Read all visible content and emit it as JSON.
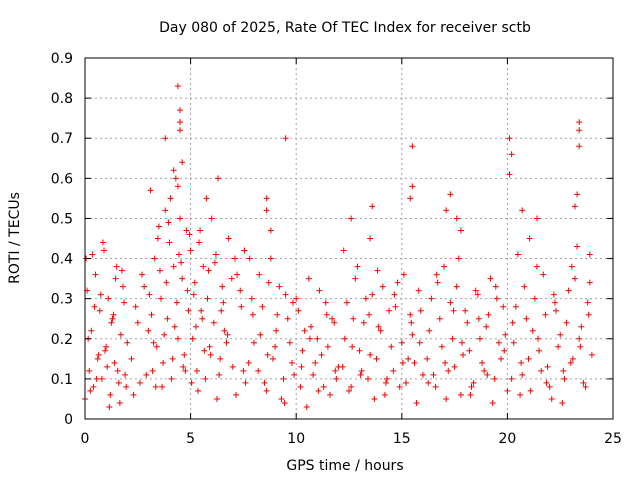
{
  "chart_data": {
    "type": "scatter",
    "title": "Day 080 of 2025, Rate Of TEC Index for receiver sctb",
    "xlabel": "GPS time / hours",
    "ylabel": "ROTI / TECUs",
    "xlim": [
      0,
      25
    ],
    "ylim": [
      0,
      0.9
    ],
    "x_ticks": [
      "0",
      "5",
      "10",
      "15",
      "20",
      "25"
    ],
    "y_ticks": [
      "0",
      "0.1",
      "0.2",
      "0.3",
      "0.4",
      "0.5",
      "0.6",
      "0.7",
      "0.8",
      "0.9"
    ],
    "grid": true,
    "marker": "+",
    "colors": {
      "points": "#ff0000",
      "grid": "#a0a0a0",
      "axis": "#000000"
    },
    "series": [
      {
        "x": [
          0.0,
          0.1,
          0.2,
          0.3,
          0.4,
          0.5,
          0.6,
          0.7,
          0.8,
          0.9,
          1.0,
          1.1,
          1.2,
          1.3,
          1.4,
          1.5,
          1.6,
          1.7,
          1.8,
          1.9,
          2.0,
          0.05,
          0.25,
          0.45,
          0.65,
          0.85,
          1.05,
          1.25,
          1.45,
          1.65,
          1.85,
          0.15,
          0.35,
          0.55,
          0.75,
          0.95,
          1.15,
          1.35,
          1.55,
          1.75,
          1.95,
          2.2,
          2.4,
          2.6,
          2.8,
          3.0,
          3.1,
          3.2,
          3.3,
          3.4,
          3.5,
          3.6,
          3.7,
          3.8,
          3.9,
          4.0,
          4.1,
          4.2,
          4.3,
          4.4,
          4.5,
          4.6,
          4.7,
          4.8,
          4.9,
          5.0,
          2.3,
          2.5,
          2.7,
          2.9,
          3.05,
          3.25,
          3.45,
          3.65,
          3.85,
          4.05,
          4.25,
          4.45,
          4.65,
          4.85,
          3.15,
          3.35,
          3.55,
          3.75,
          3.95,
          4.15,
          4.35,
          4.55,
          4.75,
          4.95,
          4.4,
          4.5,
          4.5,
          4.5,
          4.6,
          4.4,
          3.8,
          4.2,
          5.1,
          5.2,
          5.3,
          5.4,
          5.5,
          5.6,
          5.7,
          5.8,
          5.9,
          6.0,
          6.1,
          6.2,
          6.3,
          6.4,
          6.5,
          6.6,
          6.8,
          7.0,
          7.2,
          7.4,
          7.6,
          7.8,
          8.0,
          5.15,
          5.35,
          5.55,
          5.75,
          5.95,
          6.15,
          6.35,
          6.55,
          6.75,
          6.95,
          7.15,
          7.35,
          7.55,
          7.75,
          7.95,
          5.05,
          5.25,
          5.45,
          5.65,
          5.85,
          6.25,
          6.45,
          6.7,
          7.1,
          7.5,
          7.9,
          8.2,
          8.4,
          8.6,
          8.8,
          9.0,
          9.2,
          9.4,
          9.6,
          9.8,
          10.0,
          10.2,
          10.4,
          10.6,
          10.8,
          11.0,
          11.2,
          11.4,
          11.6,
          11.8,
          12.0,
          8.3,
          8.5,
          8.7,
          8.9,
          9.1,
          9.3,
          9.5,
          9.7,
          9.9,
          10.1,
          10.3,
          10.5,
          10.7,
          10.9,
          11.1,
          11.3,
          11.5,
          11.7,
          11.9,
          8.25,
          8.65,
          9.05,
          9.45,
          9.85,
          10.25,
          10.65,
          11.05,
          11.45,
          11.85,
          8.6,
          8.6,
          9.5,
          8.8,
          12.2,
          12.4,
          12.6,
          12.8,
          13.0,
          13.2,
          13.4,
          13.6,
          13.8,
          14.0,
          14.2,
          14.4,
          14.6,
          14.8,
          15.0,
          15.2,
          15.4,
          15.6,
          15.8,
          16.0,
          12.3,
          12.5,
          12.7,
          12.9,
          13.1,
          13.3,
          13.5,
          13.7,
          13.9,
          14.1,
          14.3,
          14.5,
          14.7,
          14.9,
          15.1,
          15.3,
          15.5,
          15.7,
          15.9,
          12.25,
          12.65,
          13.05,
          13.45,
          13.85,
          14.25,
          14.65,
          15.05,
          15.45,
          15.85,
          12.6,
          13.6,
          13.5,
          15.5,
          15.5,
          15.4,
          16.2,
          16.4,
          16.6,
          16.8,
          17.0,
          17.2,
          17.4,
          17.6,
          17.8,
          18.0,
          18.2,
          18.4,
          18.6,
          18.8,
          19.0,
          19.2,
          19.4,
          19.6,
          19.8,
          20.0,
          16.3,
          16.5,
          16.7,
          16.9,
          17.1,
          17.3,
          17.5,
          17.7,
          17.9,
          18.1,
          18.3,
          18.5,
          18.7,
          18.9,
          19.1,
          19.3,
          19.5,
          19.7,
          19.9,
          16.25,
          16.65,
          17.05,
          17.45,
          17.85,
          18.25,
          18.65,
          19.05,
          19.45,
          19.85,
          17.3,
          17.1,
          17.6,
          17.8,
          20.2,
          20.4,
          20.6,
          20.8,
          21.0,
          21.2,
          21.4,
          21.6,
          21.8,
          22.0,
          22.2,
          22.4,
          22.6,
          22.8,
          23.0,
          23.2,
          23.4,
          23.6,
          23.8,
          24.0,
          20.3,
          20.5,
          20.7,
          20.9,
          21.1,
          21.3,
          21.5,
          21.7,
          21.9,
          22.1,
          22.3,
          22.5,
          22.7,
          22.9,
          23.1,
          23.3,
          23.5,
          23.7,
          23.9,
          20.25,
          20.65,
          21.05,
          21.45,
          21.85,
          22.25,
          22.65,
          23.05,
          23.45,
          23.85,
          20.1,
          20.2,
          20.1,
          23.4,
          23.4,
          23.4,
          23.3,
          23.2,
          20.7,
          21.4,
          23.9
        ],
        "y": [
          0.05,
          0.32,
          0.12,
          0.22,
          0.08,
          0.36,
          0.15,
          0.27,
          0.1,
          0.42,
          0.18,
          0.3,
          0.06,
          0.25,
          0.14,
          0.38,
          0.09,
          0.21,
          0.33,
          0.11,
          0.19,
          0.4,
          0.07,
          0.28,
          0.16,
          0.44,
          0.13,
          0.24,
          0.35,
          0.04,
          0.29,
          0.2,
          0.41,
          0.1,
          0.31,
          0.17,
          0.03,
          0.26,
          0.12,
          0.37,
          0.08,
          0.15,
          0.28,
          0.09,
          0.33,
          0.22,
          0.57,
          0.12,
          0.4,
          0.18,
          0.48,
          0.3,
          0.14,
          0.52,
          0.25,
          0.44,
          0.1,
          0.38,
          0.6,
          0.2,
          0.5,
          0.35,
          0.16,
          0.47,
          0.27,
          0.42,
          0.06,
          0.24,
          0.36,
          0.11,
          0.31,
          0.19,
          0.45,
          0.08,
          0.34,
          0.55,
          0.23,
          0.41,
          0.13,
          0.32,
          0.26,
          0.08,
          0.37,
          0.21,
          0.49,
          0.15,
          0.29,
          0.39,
          0.12,
          0.46,
          0.83,
          0.77,
          0.74,
          0.72,
          0.64,
          0.58,
          0.7,
          0.62,
          0.2,
          0.34,
          0.12,
          0.44,
          0.27,
          0.38,
          0.1,
          0.3,
          0.18,
          0.5,
          0.24,
          0.41,
          0.6,
          0.15,
          0.33,
          0.22,
          0.45,
          0.13,
          0.36,
          0.28,
          0.09,
          0.4,
          0.19,
          0.31,
          0.07,
          0.25,
          0.55,
          0.16,
          0.39,
          0.11,
          0.29,
          0.21,
          0.35,
          0.06,
          0.32,
          0.42,
          0.14,
          0.26,
          0.09,
          0.23,
          0.47,
          0.17,
          0.37,
          0.05,
          0.27,
          0.19,
          0.4,
          0.12,
          0.3,
          0.12,
          0.28,
          0.07,
          0.4,
          0.18,
          0.33,
          0.1,
          0.25,
          0.14,
          0.3,
          0.08,
          0.22,
          0.35,
          0.11,
          0.2,
          0.16,
          0.29,
          0.06,
          0.24,
          0.13,
          0.21,
          0.09,
          0.34,
          0.15,
          0.26,
          0.05,
          0.31,
          0.19,
          0.11,
          0.27,
          0.17,
          0.03,
          0.23,
          0.14,
          0.32,
          0.08,
          0.18,
          0.25,
          0.1,
          0.36,
          0.16,
          0.22,
          0.04,
          0.29,
          0.13,
          0.2,
          0.07,
          0.26,
          0.12,
          0.55,
          0.52,
          0.7,
          0.47,
          0.13,
          0.29,
          0.08,
          0.35,
          0.17,
          0.24,
          0.1,
          0.31,
          0.15,
          0.22,
          0.06,
          0.27,
          0.12,
          0.34,
          0.19,
          0.09,
          0.26,
          0.14,
          0.32,
          0.11,
          0.2,
          0.07,
          0.25,
          0.38,
          0.12,
          0.3,
          0.16,
          0.05,
          0.23,
          0.33,
          0.1,
          0.18,
          0.28,
          0.08,
          0.36,
          0.15,
          0.21,
          0.04,
          0.27,
          0.42,
          0.18,
          0.11,
          0.26,
          0.37,
          0.09,
          0.31,
          0.14,
          0.24,
          0.19,
          0.5,
          0.53,
          0.45,
          0.68,
          0.58,
          0.55,
          0.15,
          0.3,
          0.08,
          0.25,
          0.38,
          0.12,
          0.2,
          0.33,
          0.06,
          0.27,
          0.17,
          0.09,
          0.31,
          0.14,
          0.23,
          0.35,
          0.1,
          0.19,
          0.28,
          0.07,
          0.22,
          0.11,
          0.34,
          0.18,
          0.05,
          0.29,
          0.13,
          0.4,
          0.16,
          0.24,
          0.08,
          0.32,
          0.2,
          0.12,
          0.26,
          0.04,
          0.3,
          0.15,
          0.21,
          0.09,
          0.36,
          0.14,
          0.27,
          0.19,
          0.06,
          0.25,
          0.11,
          0.33,
          0.17,
          0.56,
          0.52,
          0.5,
          0.47,
          0.1,
          0.28,
          0.06,
          0.33,
          0.15,
          0.22,
          0.38,
          0.12,
          0.26,
          0.08,
          0.31,
          0.18,
          0.04,
          0.24,
          0.14,
          0.35,
          0.2,
          0.09,
          0.29,
          0.16,
          0.19,
          0.41,
          0.11,
          0.25,
          0.07,
          0.3,
          0.17,
          0.36,
          0.13,
          0.05,
          0.27,
          0.21,
          0.1,
          0.32,
          0.15,
          0.43,
          0.23,
          0.08,
          0.34,
          0.24,
          0.14,
          0.45,
          0.2,
          0.09,
          0.29,
          0.12,
          0.38,
          0.18,
          0.26,
          0.7,
          0.66,
          0.61,
          0.74,
          0.72,
          0.68,
          0.56,
          0.53,
          0.52,
          0.5,
          0.41
        ]
      }
    ]
  }
}
